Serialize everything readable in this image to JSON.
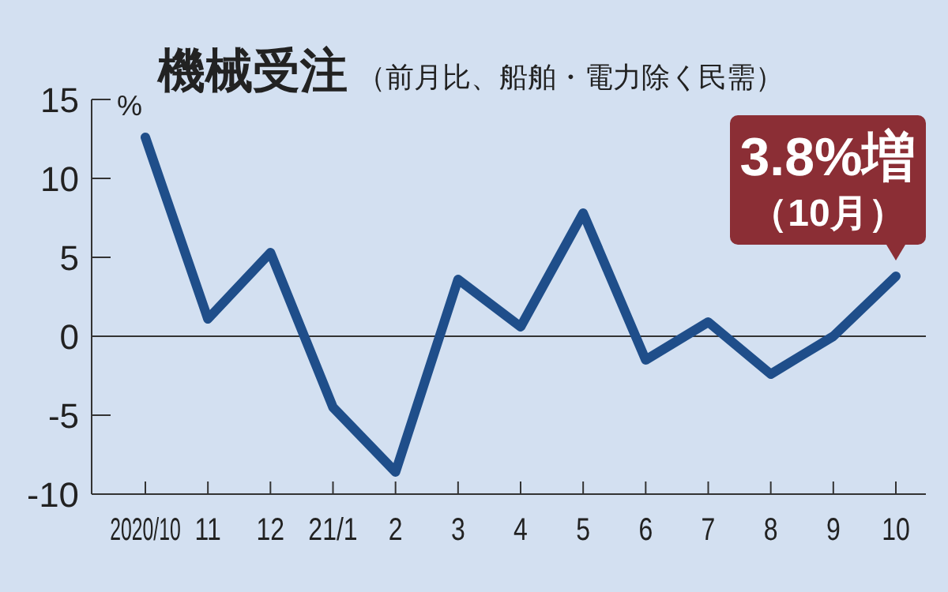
{
  "chart_data": {
    "type": "line",
    "title": "機械受注",
    "subtitle": "（前月比、船舶・電力除く民需）",
    "ylabel": "%",
    "categories": [
      "2020/10",
      "11",
      "12",
      "21/1",
      "2",
      "3",
      "4",
      "5",
      "6",
      "7",
      "8",
      "9",
      "10"
    ],
    "series": [
      {
        "color": "#1f4e8a",
        "values": [
          12.6,
          1.1,
          5.3,
          -4.5,
          -8.6,
          3.6,
          0.6,
          7.8,
          -1.5,
          0.9,
          -2.4,
          0.0,
          3.8
        ]
      }
    ],
    "ylim": [
      -10,
      15
    ],
    "yticks": [
      -10,
      -5,
      0,
      5,
      10,
      15
    ],
    "ref_lines": [
      {
        "axis": "y",
        "value": 0,
        "color": "#333333"
      }
    ],
    "annotations": [
      {
        "text": "3.8%増",
        "x": "10",
        "y": 3.8
      },
      {
        "text": "（10月）",
        "x": "10",
        "y": 3.8
      }
    ],
    "grid": false,
    "marker": "none",
    "line_style": "solid"
  }
}
